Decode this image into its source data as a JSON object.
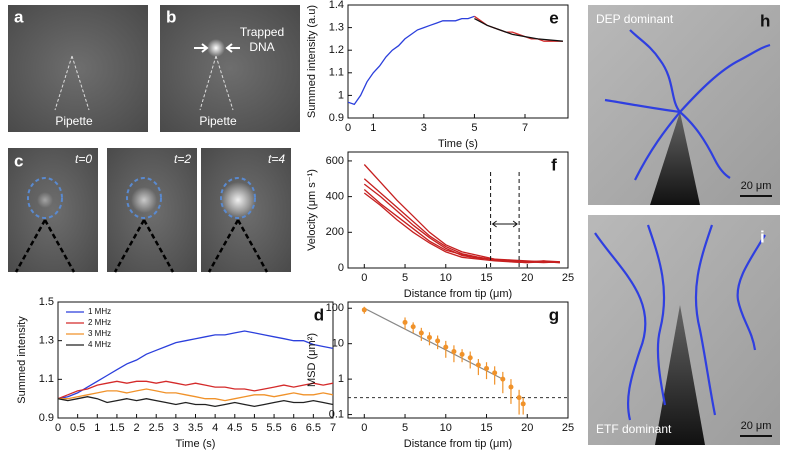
{
  "panels": {
    "a": {
      "letter": "a",
      "caption": "Pipette"
    },
    "b": {
      "letter": "b",
      "label_top": "Trapped",
      "label_bottom": "DNA",
      "caption": "Pipette"
    },
    "c": {
      "letter": "c",
      "frames": [
        "t=0",
        "t=2",
        "t=4"
      ]
    },
    "h": {
      "letter": "h",
      "title": "DEP dominant",
      "scale": "20 μm"
    },
    "i": {
      "letter": "i",
      "title": "ETF dominant",
      "scale": "20 μm"
    }
  },
  "chart_data": [
    {
      "type": "line",
      "panel": "d",
      "xlabel": "Time (s)",
      "ylabel": "Summed intensity",
      "x": [
        0,
        0.25,
        0.5,
        0.75,
        1,
        1.25,
        1.5,
        1.75,
        2,
        2.25,
        2.5,
        2.75,
        3,
        3.25,
        3.5,
        3.75,
        4,
        4.25,
        4.5,
        4.75,
        5,
        5.25,
        5.5,
        5.75,
        6,
        6.25,
        6.5,
        6.75,
        7
      ],
      "series": [
        {
          "name": "1 MHz",
          "color": "#2b3fdc",
          "values": [
            1.0,
            1.01,
            1.03,
            1.06,
            1.09,
            1.12,
            1.15,
            1.18,
            1.2,
            1.23,
            1.25,
            1.27,
            1.29,
            1.3,
            1.31,
            1.32,
            1.33,
            1.33,
            1.34,
            1.35,
            1.34,
            1.33,
            1.32,
            1.31,
            1.3,
            1.3,
            1.28,
            1.27,
            1.26
          ]
        },
        {
          "name": "2 MHz",
          "color": "#d42a2a",
          "values": [
            1.0,
            1.02,
            1.04,
            1.05,
            1.07,
            1.08,
            1.09,
            1.08,
            1.09,
            1.09,
            1.08,
            1.09,
            1.08,
            1.07,
            1.08,
            1.07,
            1.06,
            1.06,
            1.05,
            1.05,
            1.04,
            1.05,
            1.06,
            1.07,
            1.06,
            1.07,
            1.08,
            1.07,
            1.08
          ]
        },
        {
          "name": "3 MHz",
          "color": "#f0922a",
          "values": [
            1.0,
            1.0,
            1.01,
            1.02,
            1.03,
            1.04,
            1.04,
            1.03,
            1.04,
            1.05,
            1.04,
            1.03,
            1.03,
            1.02,
            1.01,
            1.0,
            1.0,
            0.99,
            1.0,
            1.01,
            1.02,
            1.02,
            1.01,
            1.02,
            1.03,
            1.02,
            1.02,
            1.03,
            1.02
          ]
        },
        {
          "name": "4 MHz",
          "color": "#222222",
          "values": [
            1.0,
            0.99,
            1.0,
            1.01,
            1.0,
            0.98,
            0.99,
            1.0,
            0.99,
            1.0,
            0.99,
            0.98,
            0.97,
            0.98,
            0.97,
            0.97,
            0.96,
            0.97,
            0.98,
            0.97,
            0.96,
            0.97,
            0.98,
            0.99,
            0.98,
            0.98,
            0.99,
            0.98,
            0.97
          ]
        }
      ],
      "xlim": [
        0,
        7
      ],
      "xticks": [
        0,
        0.5,
        1,
        1.5,
        2,
        2.5,
        3,
        3.5,
        4,
        4.5,
        5,
        5.5,
        6,
        6.5,
        7
      ],
      "ylim": [
        0.9,
        1.5
      ],
      "yticks": [
        0.9,
        1.1,
        1.3,
        1.5
      ],
      "legend": "upper left"
    },
    {
      "type": "line",
      "panel": "e",
      "xlabel": "Time (s)",
      "ylabel": "Summed intensity (a.u)",
      "series": [
        {
          "color": "#2b3fdc",
          "x": [
            0,
            0.25,
            0.5,
            0.75,
            1,
            1.25,
            1.5,
            1.75,
            2,
            2.25,
            2.5,
            2.75,
            3,
            3.25,
            3.5,
            3.75,
            4,
            4.25,
            4.5,
            4.75,
            5
          ],
          "values": [
            0.97,
            0.96,
            1.0,
            1.06,
            1.1,
            1.13,
            1.17,
            1.2,
            1.22,
            1.25,
            1.27,
            1.29,
            1.3,
            1.31,
            1.32,
            1.33,
            1.33,
            1.33,
            1.34,
            1.34,
            1.35
          ]
        },
        {
          "color": "#d42a2a",
          "x": [
            5,
            5.25,
            5.5,
            5.75,
            6,
            6.25,
            6.5,
            6.75,
            7,
            7.25,
            7.5,
            7.75,
            8,
            8.25,
            8.5
          ],
          "values": [
            1.35,
            1.33,
            1.31,
            1.3,
            1.29,
            1.28,
            1.28,
            1.27,
            1.26,
            1.25,
            1.25,
            1.24,
            1.24,
            1.24,
            1.24
          ]
        },
        {
          "color": "#111111",
          "x": [
            5,
            5.5,
            6,
            6.5,
            7,
            7.5,
            8,
            8.5
          ],
          "values": [
            1.34,
            1.31,
            1.29,
            1.27,
            1.26,
            1.25,
            1.245,
            1.24
          ]
        }
      ],
      "xlim": [
        0,
        8.7
      ],
      "xticks": [
        0,
        1,
        3,
        5,
        7
      ],
      "ylim": [
        0.9,
        1.4
      ],
      "yticks": [
        0.9,
        1,
        1.1,
        1.2,
        1.3,
        1.4
      ]
    },
    {
      "type": "line",
      "panel": "f",
      "xlabel": "Distance from tip (μm)",
      "ylabel": "Velocity (μm s⁻¹)",
      "x": [
        0,
        2,
        4,
        6,
        8,
        10,
        12,
        14,
        16,
        18,
        20,
        22,
        24
      ],
      "series": [
        {
          "color": "#c62020",
          "values": [
            580,
            480,
            380,
            290,
            200,
            130,
            90,
            70,
            50,
            45,
            40,
            35,
            30
          ]
        },
        {
          "color": "#c62020",
          "values": [
            500,
            420,
            340,
            260,
            180,
            120,
            80,
            60,
            45,
            40,
            35,
            40,
            30
          ]
        },
        {
          "color": "#c62020",
          "values": [
            470,
            400,
            320,
            240,
            170,
            110,
            70,
            55,
            50,
            35,
            30,
            40,
            35
          ]
        },
        {
          "color": "#c62020",
          "values": [
            440,
            360,
            290,
            220,
            150,
            100,
            75,
            60,
            45,
            40,
            35,
            30,
            35
          ]
        },
        {
          "color": "#c62020",
          "values": [
            420,
            350,
            270,
            200,
            140,
            90,
            60,
            50,
            40,
            35,
            30,
            35,
            30
          ]
        }
      ],
      "vlines": [
        15.5,
        19
      ],
      "xlim": [
        -2,
        25
      ],
      "xticks": [
        0,
        5,
        10,
        15,
        20,
        25
      ],
      "ylim": [
        0,
        650
      ],
      "yticks": [
        0,
        200,
        400,
        600
      ]
    },
    {
      "type": "errorbar",
      "panel": "g",
      "xlabel": "Distance from tip (μm)",
      "ylabel": "MSD (μm²)",
      "x": [
        0,
        5,
        6,
        7,
        8,
        9,
        10,
        11,
        12,
        13,
        14,
        15,
        16,
        17,
        18,
        19,
        19.5
      ],
      "values": [
        90,
        40,
        30,
        20,
        15,
        12,
        8,
        6,
        5,
        4,
        2.5,
        2,
        1.5,
        1,
        0.6,
        0.3,
        0.2
      ],
      "errors": [
        20,
        15,
        10,
        8,
        6,
        5,
        4,
        3,
        2,
        2,
        1.2,
        1,
        0.8,
        0.6,
        0.4,
        0.2,
        0.1
      ],
      "color": "#f0922a",
      "fit": {
        "x": [
          0,
          17
        ],
        "values": [
          100,
          1
        ],
        "color": "#888888"
      },
      "hline": 0.3,
      "log": true,
      "xlim": [
        -2,
        25
      ],
      "xticks": [
        0,
        5,
        10,
        15,
        20,
        25
      ],
      "ylim": [
        0.08,
        150
      ],
      "yticks": [
        0.1,
        1,
        10,
        100
      ]
    }
  ]
}
